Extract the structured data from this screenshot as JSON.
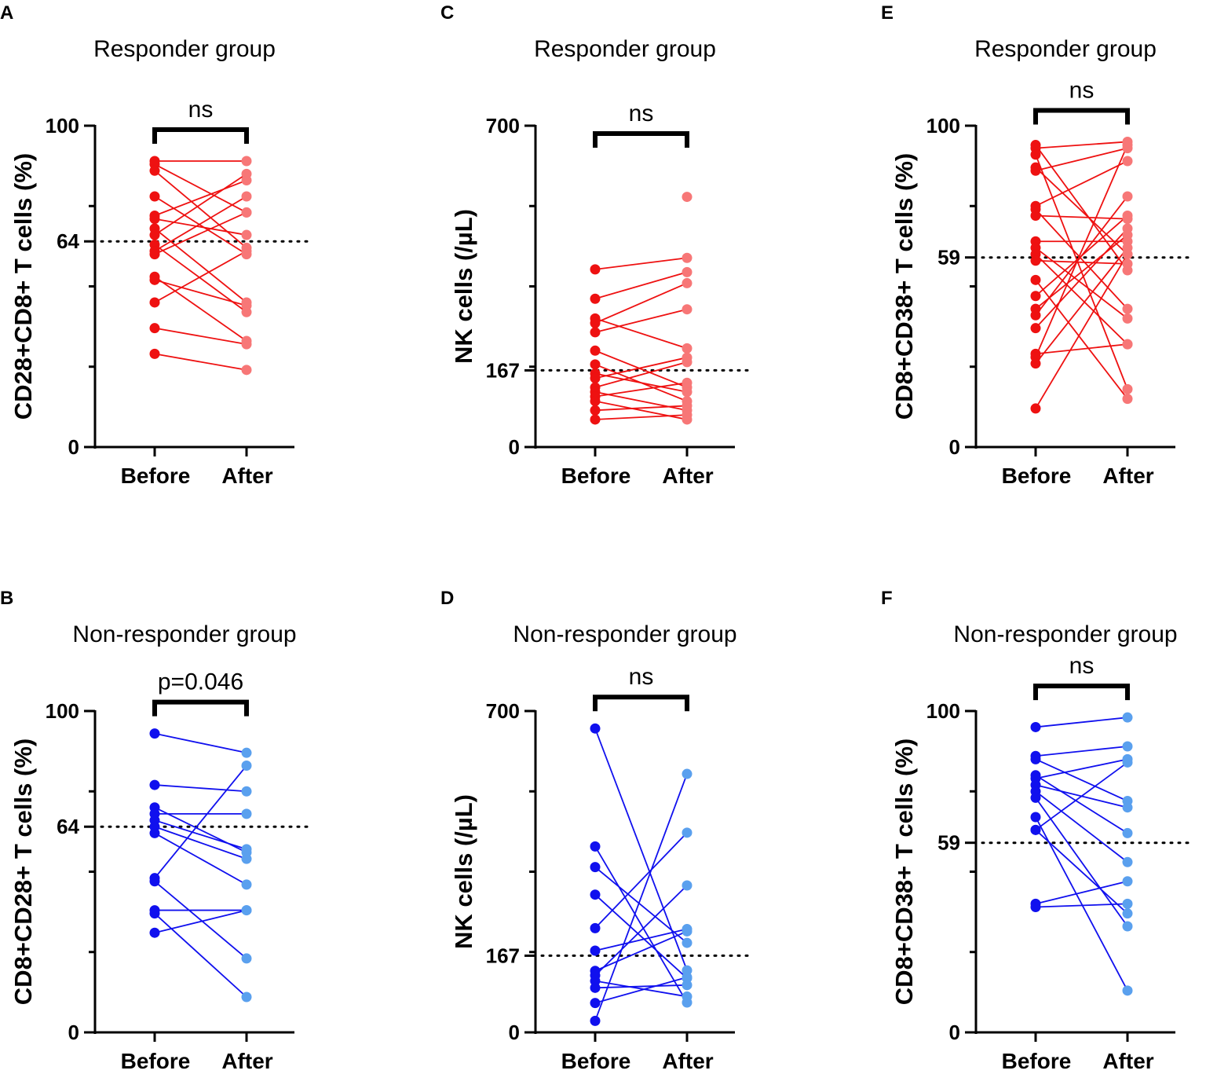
{
  "chart_data": [
    {
      "panel": "A",
      "type": "paired-scatter",
      "title": "Responder group",
      "ylabel": "CD28+CD8+ T cells (%)",
      "ylim": [
        0,
        100
      ],
      "yticks": [
        "100",
        "64",
        "0"
      ],
      "reference_line": 64,
      "categories": [
        "Before",
        "After"
      ],
      "significance": "ns",
      "colors": {
        "before": "#ee1111",
        "after": "#f77777",
        "line": "#ee1111"
      },
      "pairs": [
        [
          89,
          89
        ],
        [
          88,
          73
        ],
        [
          86,
          62
        ],
        [
          78,
          60
        ],
        [
          72,
          83
        ],
        [
          71,
          66
        ],
        [
          68,
          45
        ],
        [
          66,
          85
        ],
        [
          63,
          42
        ],
        [
          61,
          78
        ],
        [
          60,
          73
        ],
        [
          53,
          33
        ],
        [
          52,
          44
        ],
        [
          45,
          61
        ],
        [
          37,
          32
        ],
        [
          29,
          24
        ]
      ]
    },
    {
      "panel": "B",
      "type": "paired-scatter",
      "title": "Non-responder group",
      "ylabel": "CD8+CD28+ T cells (%)",
      "ylim": [
        0,
        100
      ],
      "yticks": [
        "100",
        "64",
        "0"
      ],
      "reference_line": 64,
      "categories": [
        "Before",
        "After"
      ],
      "significance": "p=0.046",
      "colors": {
        "before": "#1010ee",
        "after": "#5aa0ee",
        "line": "#1010ee"
      },
      "pairs": [
        [
          93,
          87
        ],
        [
          77,
          75
        ],
        [
          70,
          56
        ],
        [
          68,
          68
        ],
        [
          66,
          57
        ],
        [
          64,
          54
        ],
        [
          62,
          46
        ],
        [
          48,
          83
        ],
        [
          47,
          23
        ],
        [
          38,
          38
        ],
        [
          37,
          11
        ],
        [
          31,
          38
        ]
      ]
    },
    {
      "panel": "C",
      "type": "paired-scatter",
      "title": "Responder group",
      "ylabel": "NK cells (/µL)",
      "ylim": [
        0,
        700
      ],
      "yticks": [
        "700",
        "167",
        "0"
      ],
      "reference_line": 167,
      "categories": [
        "Before",
        "After"
      ],
      "significance": "ns",
      "colors": {
        "before": "#ee1111",
        "after": "#f77777",
        "line": "#ee1111"
      },
      "pairs": [
        [
          387,
          412
        ],
        [
          323,
          381
        ],
        [
          280,
          215
        ],
        [
          270,
          357
        ],
        [
          250,
          300
        ],
        [
          210,
          130
        ],
        [
          180,
          100
        ],
        [
          160,
          120
        ],
        [
          150,
          195
        ],
        [
          130,
          185
        ],
        [
          120,
          80
        ],
        [
          110,
          140
        ],
        [
          100,
          60
        ],
        [
          80,
          90
        ],
        [
          60,
          70
        ]
      ],
      "extra_after": [
        545
      ]
    },
    {
      "panel": "D",
      "type": "paired-scatter",
      "title": "Non-responder group",
      "ylabel": "NK cells (/µL)",
      "ylim": [
        0,
        700
      ],
      "yticks": [
        "700",
        "167",
        "0"
      ],
      "reference_line": 167,
      "categories": [
        "Before",
        "After"
      ],
      "significance": "ns",
      "colors": {
        "before": "#1010ee",
        "after": "#5aa0ee",
        "line": "#1010ee"
      },
      "pairs": [
        [
          662,
          135
        ],
        [
          405,
          65
        ],
        [
          360,
          195
        ],
        [
          300,
          118
        ],
        [
          227,
          435
        ],
        [
          178,
          225
        ],
        [
          134,
          220
        ],
        [
          124,
          320
        ],
        [
          112,
          78
        ],
        [
          97,
          103
        ],
        [
          64,
          120
        ],
        [
          25,
          563
        ]
      ]
    },
    {
      "panel": "E",
      "type": "paired-scatter",
      "title": "Responder group",
      "ylabel": "CD8+CD38+ T cells (%)",
      "ylim": [
        0,
        100
      ],
      "yticks": [
        "100",
        "59",
        "0"
      ],
      "reference_line": 59,
      "categories": [
        "Before",
        "After"
      ],
      "significance": "ns",
      "colors": {
        "before": "#ee1111",
        "after": "#f77777",
        "line": "#ee1111"
      },
      "pairs": [
        [
          94,
          55
        ],
        [
          93,
          95
        ],
        [
          91,
          18
        ],
        [
          87,
          60
        ],
        [
          86,
          93
        ],
        [
          75,
          89
        ],
        [
          74,
          43
        ],
        [
          72,
          71
        ],
        [
          64,
          64
        ],
        [
          62,
          40
        ],
        [
          60,
          32
        ],
        [
          58,
          57
        ],
        [
          52,
          15
        ],
        [
          47,
          72
        ],
        [
          43,
          66
        ],
        [
          41,
          78
        ],
        [
          37,
          68
        ],
        [
          29,
          32
        ],
        [
          28,
          94
        ],
        [
          26,
          62
        ],
        [
          12,
          60
        ]
      ]
    },
    {
      "panel": "F",
      "type": "paired-scatter",
      "title": "Non-responder group",
      "ylabel": "CD8+CD38+ T cells (%)",
      "ylim": [
        0,
        100
      ],
      "yticks": [
        "100",
        "59",
        "0"
      ],
      "reference_line": 59,
      "categories": [
        "Before",
        "After"
      ],
      "significance": "ns",
      "colors": {
        "before": "#1010ee",
        "after": "#5aa0ee",
        "line": "#1010ee"
      },
      "pairs": [
        [
          95,
          98
        ],
        [
          86,
          89
        ],
        [
          85,
          72
        ],
        [
          80,
          62
        ],
        [
          79,
          85
        ],
        [
          77,
          70
        ],
        [
          75,
          53
        ],
        [
          73,
          33
        ],
        [
          67,
          13
        ],
        [
          40,
          47
        ],
        [
          39,
          40
        ],
        [
          63,
          37
        ],
        [
          63,
          84
        ]
      ]
    }
  ]
}
